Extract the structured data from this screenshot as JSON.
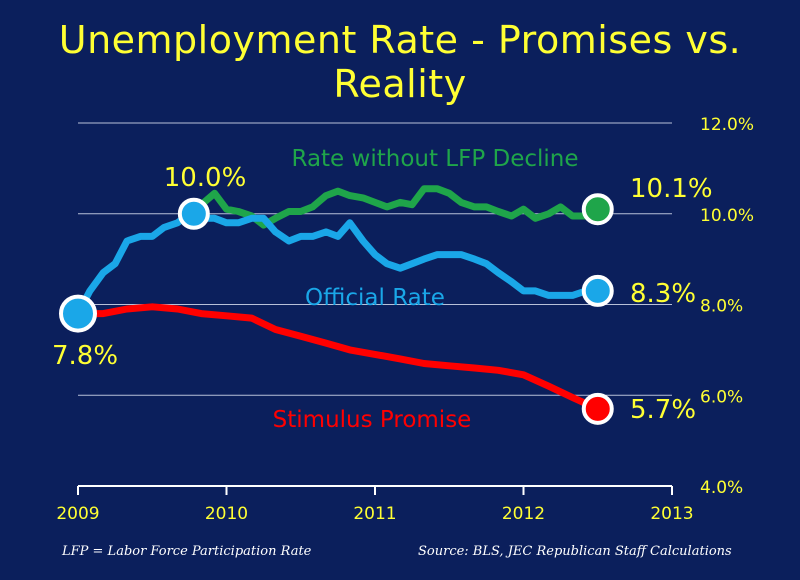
{
  "title": "Unemployment Rate - Promises vs. Reality",
  "footnote_left": "LFP = Labor Force Participation Rate",
  "footnote_right": "Source:  BLS, JEC Republican Staff Calculations",
  "colors": {
    "background": "#0b1f5c",
    "text": "#ffff33",
    "official": "#1aa7e8",
    "lfp": "#1fa54a",
    "stimulus": "#ff0000",
    "grid": "#b8c0d8"
  },
  "chart_data": {
    "type": "line",
    "title": "Unemployment Rate - Promises vs. Reality",
    "xlim": [
      2009,
      2013
    ],
    "ylim": [
      4.0,
      12.0
    ],
    "x_ticks": [
      2009,
      2010,
      2011,
      2012,
      2013
    ],
    "x_tick_labels": [
      "2009",
      "2010",
      "2011",
      "2012",
      "2013"
    ],
    "y_ticks": [
      4,
      6,
      8,
      10,
      12
    ],
    "y_tick_labels": [
      "4.0%",
      "6.0%",
      "8.0%",
      "10.0%",
      "12.0%"
    ],
    "grid": true,
    "series": [
      {
        "name": "Rate without LFP Decline",
        "color": "#1fa54a",
        "x": [
          2009.75,
          2009.83,
          2009.92,
          2010.0,
          2010.08,
          2010.17,
          2010.25,
          2010.33,
          2010.42,
          2010.5,
          2010.58,
          2010.67,
          2010.75,
          2010.83,
          2010.92,
          2011.0,
          2011.08,
          2011.17,
          2011.25,
          2011.33,
          2011.42,
          2011.5,
          2011.58,
          2011.67,
          2011.75,
          2011.83,
          2011.92,
          2012.0,
          2012.08,
          2012.17,
          2012.25,
          2012.33,
          2012.42,
          2012.5
        ],
        "y": [
          10.0,
          10.2,
          10.45,
          10.1,
          10.05,
          9.95,
          9.75,
          9.9,
          10.05,
          10.05,
          10.15,
          10.4,
          10.5,
          10.4,
          10.35,
          10.25,
          10.15,
          10.25,
          10.2,
          10.55,
          10.55,
          10.45,
          10.25,
          10.15,
          10.15,
          10.05,
          9.95,
          10.1,
          9.9,
          10.0,
          10.15,
          9.95,
          9.95,
          10.1
        ]
      },
      {
        "name": "Official Rate",
        "color": "#1aa7e8",
        "x": [
          2009.0,
          2009.08,
          2009.17,
          2009.25,
          2009.33,
          2009.42,
          2009.5,
          2009.58,
          2009.67,
          2009.75,
          2009.83,
          2009.92,
          2010.0,
          2010.08,
          2010.17,
          2010.25,
          2010.33,
          2010.42,
          2010.5,
          2010.58,
          2010.67,
          2010.75,
          2010.83,
          2010.92,
          2011.0,
          2011.08,
          2011.17,
          2011.25,
          2011.33,
          2011.42,
          2011.5,
          2011.58,
          2011.67,
          2011.75,
          2011.83,
          2011.92,
          2012.0,
          2012.08,
          2012.17,
          2012.25,
          2012.33,
          2012.42,
          2012.5
        ],
        "y": [
          7.8,
          8.3,
          8.7,
          8.9,
          9.4,
          9.5,
          9.5,
          9.7,
          9.8,
          10.0,
          9.9,
          9.9,
          9.8,
          9.8,
          9.9,
          9.9,
          9.6,
          9.4,
          9.5,
          9.5,
          9.6,
          9.5,
          9.8,
          9.4,
          9.1,
          8.9,
          8.8,
          8.9,
          9.0,
          9.1,
          9.1,
          9.1,
          9.0,
          8.9,
          8.7,
          8.5,
          8.3,
          8.3,
          8.2,
          8.2,
          8.2,
          8.3,
          8.3
        ]
      },
      {
        "name": "Stimulus Promise",
        "color": "#ff0000",
        "x": [
          2009.0,
          2009.17,
          2009.33,
          2009.5,
          2009.67,
          2009.83,
          2010.0,
          2010.17,
          2010.33,
          2010.5,
          2010.67,
          2010.83,
          2011.0,
          2011.17,
          2011.33,
          2011.5,
          2011.67,
          2011.83,
          2012.0,
          2012.17,
          2012.33,
          2012.5
        ],
        "y": [
          7.8,
          7.8,
          7.9,
          7.95,
          7.9,
          7.8,
          7.75,
          7.7,
          7.45,
          7.3,
          7.15,
          7.0,
          6.9,
          6.8,
          6.7,
          6.65,
          6.6,
          6.55,
          6.45,
          6.2,
          5.95,
          5.7
        ]
      }
    ],
    "labels": [
      {
        "text": "Rate without LFP Decline",
        "color": "#1fa54a"
      },
      {
        "text": "Official Rate",
        "color": "#1aa7e8"
      },
      {
        "text": "Stimulus Promise",
        "color": "#ff0000"
      }
    ],
    "annotations": [
      {
        "text": "7.8%",
        "x": 2009.0,
        "y": 7.8,
        "marker_color": "#1aa7e8"
      },
      {
        "text": "10.0%",
        "x": 2009.78,
        "y": 10.0,
        "marker_color": "#1aa7e8"
      },
      {
        "text": "10.1%",
        "x": 2012.5,
        "y": 10.1,
        "marker_color": "#1fa54a"
      },
      {
        "text": "8.3%",
        "x": 2012.5,
        "y": 8.3,
        "marker_color": "#1aa7e8"
      },
      {
        "text": "5.7%",
        "x": 2012.5,
        "y": 5.7,
        "marker_color": "#ff0000"
      }
    ]
  }
}
